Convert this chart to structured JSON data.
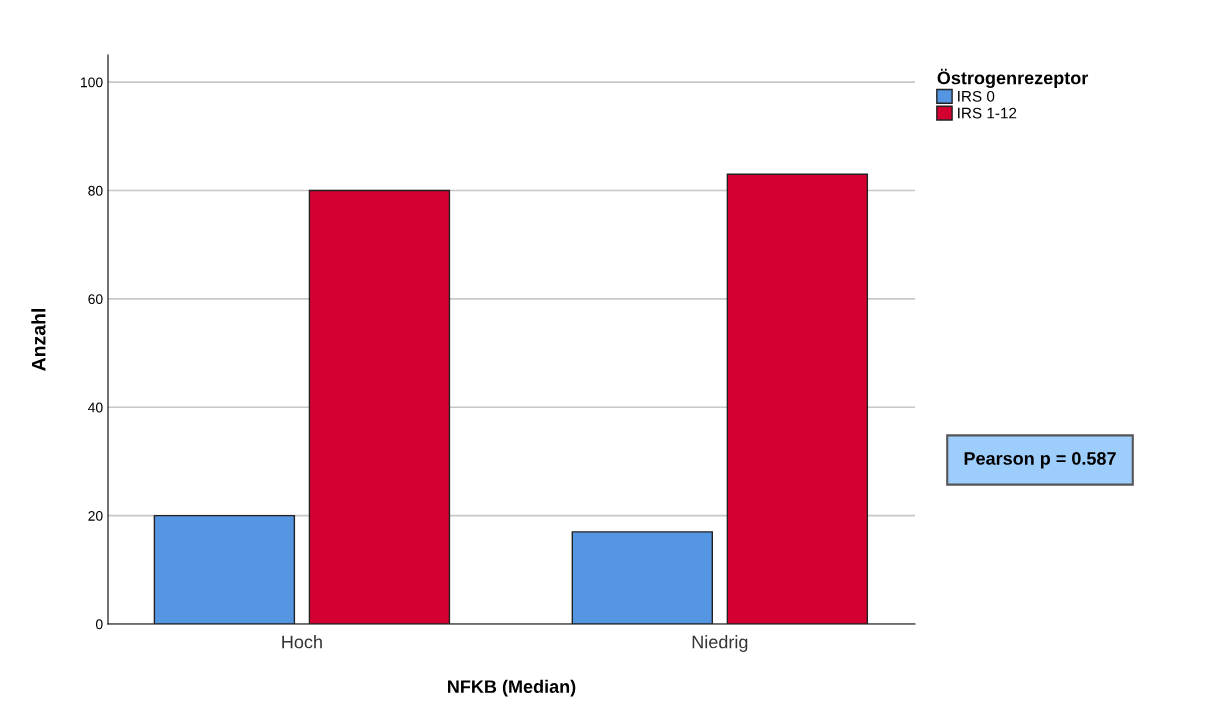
{
  "chart_data": {
    "type": "bar",
    "xlabel": "NFKB (Median)",
    "ylabel": "Anzahl",
    "legend_title": "Östrogenrezeptor",
    "categories": [
      "Hoch",
      "Niedrig"
    ],
    "series": [
      {
        "name": "IRS 0",
        "color": "#5596e3",
        "values": [
          20,
          17
        ]
      },
      {
        "name": "IRS 1-12",
        "color": "#d50032",
        "values": [
          80,
          83
        ]
      }
    ],
    "ylim": [
      0,
      105
    ],
    "yticks": [
      0,
      20,
      40,
      60,
      80,
      100
    ],
    "grid": "y",
    "legend": "top right",
    "annotations": [
      "Pearson p = 0.587"
    ]
  }
}
